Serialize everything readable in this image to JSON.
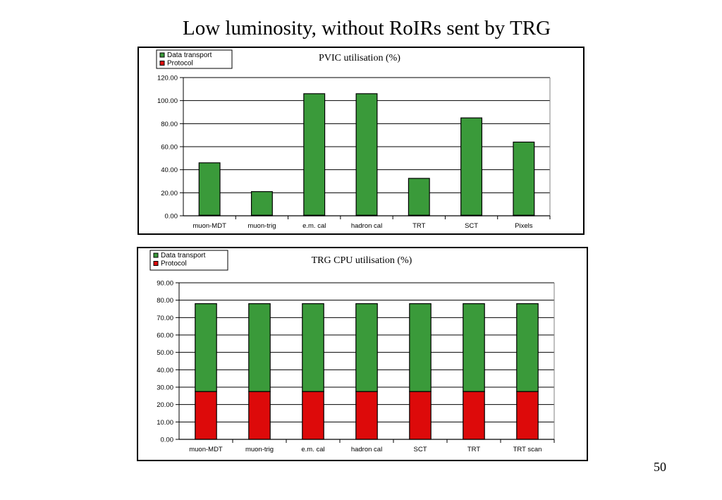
{
  "slide": {
    "title": "Low luminosity, without RoIRs sent by TRG",
    "page_number": "50"
  },
  "colors": {
    "data_transport": "#3a9a3a",
    "protocol": "#dd0a0a",
    "grid": "#000000"
  },
  "chart_data": [
    {
      "type": "bar",
      "title": "PVIC utilisation (%)",
      "xlabel": "",
      "ylabel": "",
      "ylim": [
        0,
        120
      ],
      "ytick_step": 20,
      "tick_labels": [
        "0.00",
        "20.00",
        "40.00",
        "60.00",
        "80.00",
        "100.00",
        "120.00"
      ],
      "grid": true,
      "stacked": true,
      "legend": {
        "placement": "top-left",
        "entries": [
          "Data transport",
          "Protocol"
        ]
      },
      "categories": [
        "muon-MDT",
        "muon-trig",
        "e.m. cal",
        "hadron cal",
        "TRT",
        "SCT",
        "Pixels"
      ],
      "series": [
        {
          "name": "Data transport",
          "values": [
            45.5,
            20.5,
            105.5,
            105.5,
            32,
            84.5,
            63.5
          ]
        },
        {
          "name": "Protocol",
          "values": [
            0.5,
            0.5,
            0.5,
            0.5,
            0.5,
            0.5,
            0.5
          ]
        }
      ]
    },
    {
      "type": "bar",
      "title": "TRG CPU utilisation (%)",
      "xlabel": "",
      "ylabel": "",
      "ylim": [
        0,
        90
      ],
      "ytick_step": 10,
      "tick_labels": [
        "0.00",
        "10.00",
        "20.00",
        "30.00",
        "40.00",
        "50.00",
        "60.00",
        "70.00",
        "80.00",
        "90.00"
      ],
      "grid": true,
      "stacked": true,
      "legend": {
        "placement": "top-left",
        "entries": [
          "Data transport",
          "Protocol"
        ]
      },
      "categories": [
        "muon-MDT",
        "muon-trig",
        "e.m. cal",
        "hadron cal",
        "SCT",
        "TRT",
        "TRT scan"
      ],
      "series": [
        {
          "name": "Data transport",
          "values": [
            50.5,
            50.5,
            50.5,
            50.5,
            50.5,
            50.5,
            50.5
          ]
        },
        {
          "name": "Protocol",
          "values": [
            27.5,
            27.5,
            27.5,
            27.5,
            27.5,
            27.5,
            27.5
          ]
        }
      ]
    }
  ]
}
